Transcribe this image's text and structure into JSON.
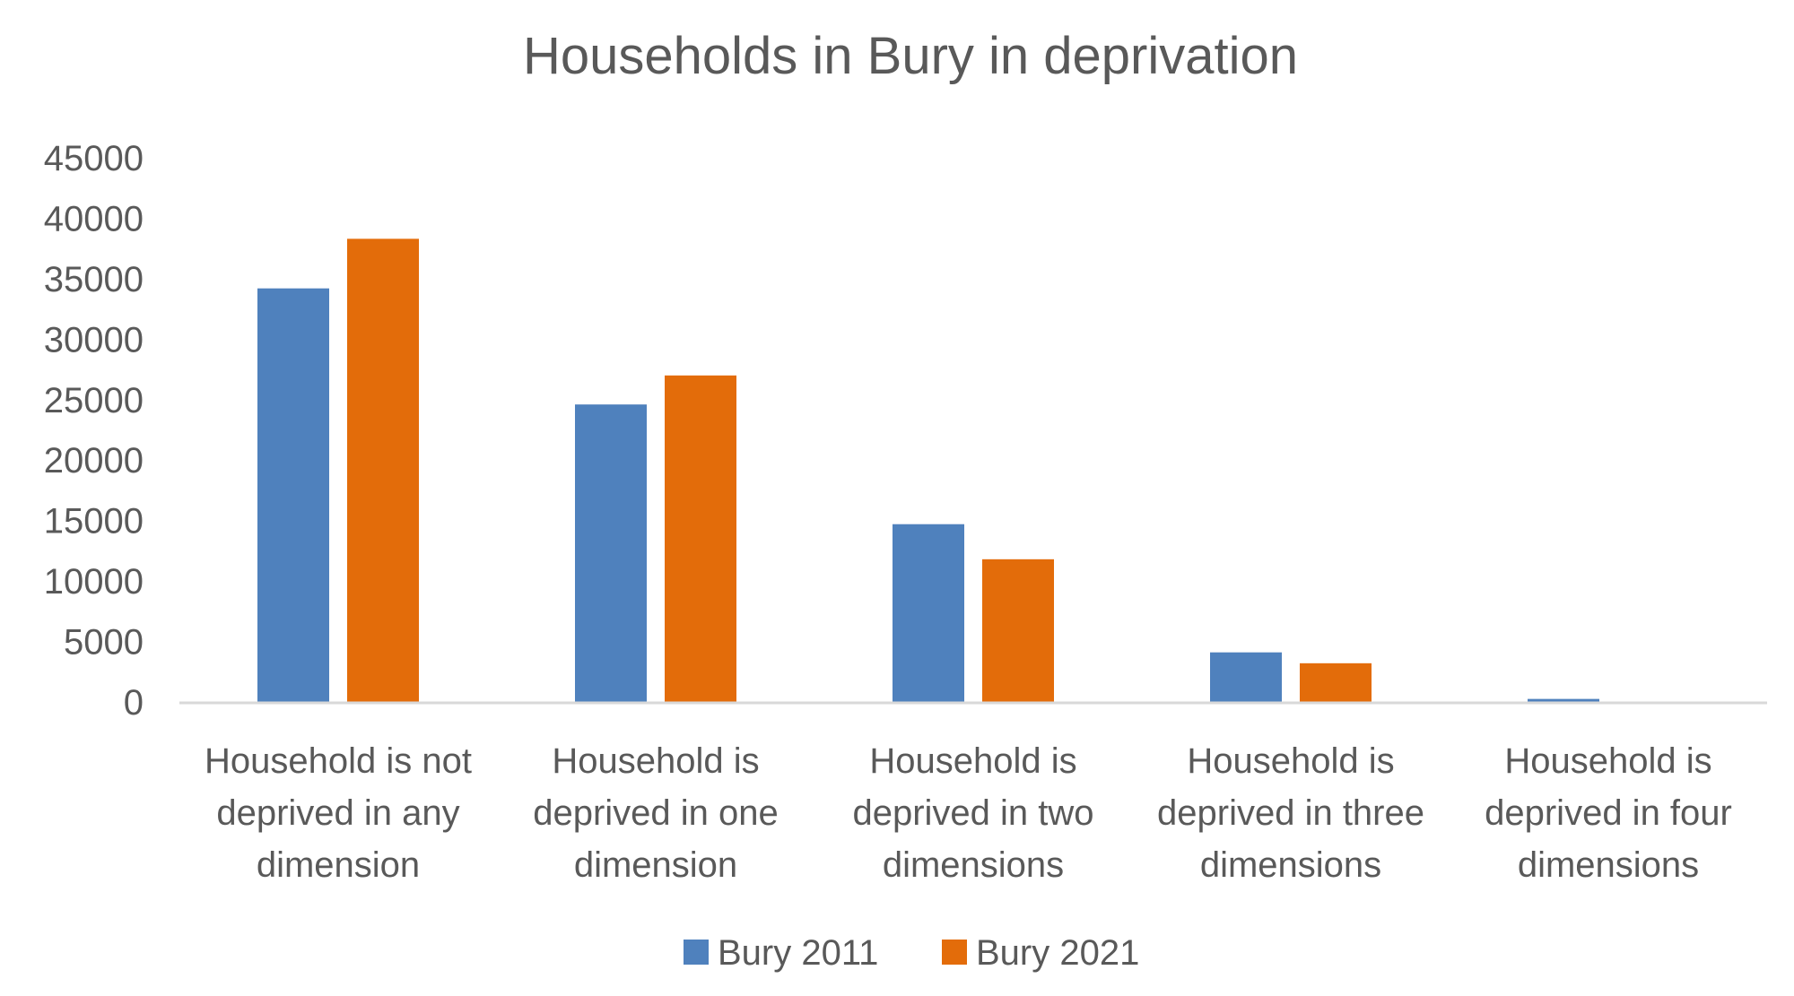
{
  "chart_data": {
    "type": "bar",
    "title": "Households  in Bury in deprivation",
    "categories": [
      [
        "Household is not",
        "deprived in any",
        "dimension"
      ],
      [
        "Household is",
        "deprived in one",
        "dimension"
      ],
      [
        "Household is",
        "deprived in two",
        "dimensions"
      ],
      [
        "Household is",
        "deprived in three",
        "dimensions"
      ],
      [
        "Household is",
        "deprived in four",
        "dimensions"
      ]
    ],
    "series": [
      {
        "name": "Bury 2011",
        "color": "#4f81bd",
        "values": [
          34200,
          24600,
          14700,
          4100,
          250
        ]
      },
      {
        "name": "Bury 2021",
        "color": "#e36c0a",
        "values": [
          38300,
          27000,
          11800,
          3200,
          0
        ]
      }
    ],
    "ylim": [
      0,
      45000
    ],
    "yticks": [
      0,
      5000,
      10000,
      15000,
      20000,
      25000,
      30000,
      35000,
      40000,
      45000
    ],
    "xlabel": "",
    "ylabel": "",
    "grid": false,
    "legend_position": "bottom"
  }
}
